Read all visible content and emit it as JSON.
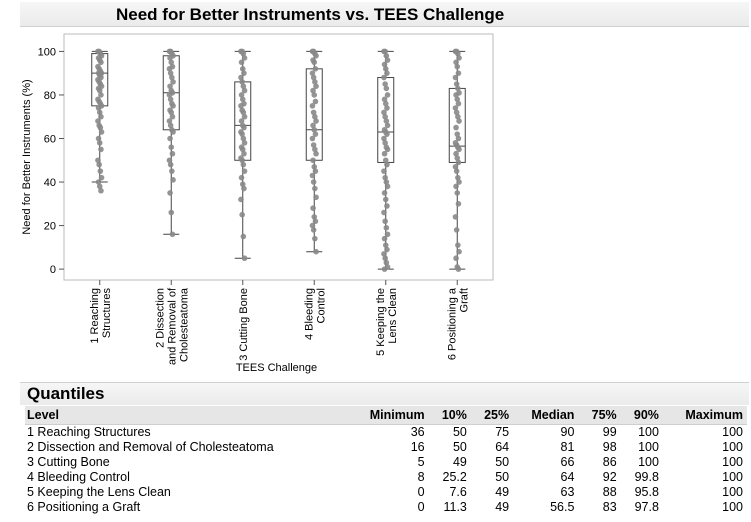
{
  "chart_data": {
    "type": "box",
    "title": "Need for Better Instruments vs. TEES Challenge",
    "xlabel": "TEES Challenge",
    "ylabel": "Need for Better Instruments (%)",
    "ylim": [
      -5,
      108
    ],
    "yticks": [
      0,
      20,
      40,
      60,
      80,
      100
    ],
    "categories": [
      [
        "1 Reaching",
        "Structures"
      ],
      [
        "2 Dissection",
        "and Removal of",
        "Cholesteatoma"
      ],
      [
        "3 Cutting Bone"
      ],
      [
        "4 Bleeding",
        "Control"
      ],
      [
        "5 Keeping the",
        "Lens Clean"
      ],
      [
        "6 Positioning a",
        "Graft"
      ]
    ],
    "boxes": [
      {
        "min": 36,
        "q1": 75,
        "median": 90,
        "q3": 99,
        "max": 100,
        "whisker_low": 40
      },
      {
        "min": 16,
        "q1": 64,
        "median": 81,
        "q3": 98,
        "max": 100,
        "whisker_low": 16
      },
      {
        "min": 5,
        "q1": 50,
        "median": 66,
        "q3": 86,
        "max": 100,
        "whisker_low": 5
      },
      {
        "min": 8,
        "q1": 50,
        "median": 64,
        "q3": 92,
        "max": 100,
        "whisker_low": 8
      },
      {
        "min": 0,
        "q1": 49,
        "median": 63,
        "q3": 88,
        "max": 100,
        "whisker_low": 0
      },
      {
        "min": 0,
        "q1": 49,
        "median": 56.5,
        "q3": 83,
        "max": 100,
        "whisker_low": 0
      }
    ],
    "points": [
      [
        100,
        100,
        99,
        98,
        97,
        96,
        95,
        93,
        92,
        91,
        90,
        90,
        89,
        88,
        87,
        86,
        85,
        84,
        83,
        82,
        80,
        78,
        77,
        76,
        75,
        74,
        72,
        70,
        68,
        66,
        65,
        63,
        60,
        58,
        55,
        50,
        48,
        45,
        42,
        40,
        38,
        36
      ],
      [
        100,
        100,
        99,
        98,
        97,
        95,
        93,
        92,
        90,
        88,
        86,
        84,
        82,
        81,
        80,
        78,
        76,
        75,
        73,
        72,
        70,
        68,
        66,
        64,
        63,
        60,
        56,
        53,
        50,
        48,
        45,
        41,
        35,
        26,
        16
      ],
      [
        100,
        100,
        99,
        97,
        95,
        92,
        90,
        88,
        86,
        84,
        82,
        80,
        78,
        76,
        75,
        73,
        72,
        70,
        68,
        66,
        65,
        63,
        62,
        60,
        58,
        56,
        55,
        53,
        51,
        50,
        48,
        45,
        42,
        39,
        37,
        32,
        25,
        15,
        5
      ],
      [
        100,
        100,
        99,
        98,
        96,
        95,
        92,
        90,
        88,
        86,
        84,
        82,
        80,
        77,
        75,
        72,
        70,
        68,
        66,
        64,
        62,
        60,
        57,
        55,
        53,
        50,
        47,
        45,
        43,
        40,
        37,
        33,
        28,
        24,
        22,
        20,
        18,
        14,
        8
      ],
      [
        100,
        100,
        98,
        96,
        94,
        92,
        90,
        88,
        85,
        83,
        80,
        78,
        76,
        74,
        72,
        70,
        68,
        66,
        64,
        63,
        62,
        60,
        58,
        56,
        55,
        53,
        50,
        48,
        45,
        42,
        40,
        38,
        35,
        32,
        29,
        26,
        22,
        19,
        16,
        14,
        11,
        9,
        7,
        5,
        3,
        1,
        0
      ],
      [
        100,
        100,
        99,
        97,
        95,
        93,
        90,
        88,
        85,
        83,
        81,
        80,
        78,
        76,
        74,
        72,
        70,
        68,
        65,
        62,
        60,
        58,
        57,
        56,
        55,
        53,
        51,
        49,
        47,
        45,
        42,
        40,
        38,
        35,
        30,
        24,
        18,
        11,
        8,
        5,
        1,
        0
      ]
    ],
    "grid": false,
    "colors": {
      "points": "#888888",
      "box": "#444444",
      "frame": "#bbbbbb"
    }
  },
  "quantiles": {
    "title": "Quantiles",
    "columns": [
      "Level",
      "Minimum",
      "10%",
      "25%",
      "Median",
      "75%",
      "90%",
      "Maximum"
    ],
    "rows": [
      [
        "1 Reaching Structures",
        "36",
        "50",
        "75",
        "90",
        "99",
        "100",
        "100"
      ],
      [
        "2 Dissection and Removal of Cholesteatoma",
        "16",
        "50",
        "64",
        "81",
        "98",
        "100",
        "100"
      ],
      [
        "3 Cutting Bone",
        "5",
        "49",
        "50",
        "66",
        "86",
        "100",
        "100"
      ],
      [
        "4 Bleeding Control",
        "8",
        "25.2",
        "50",
        "64",
        "92",
        "99.8",
        "100"
      ],
      [
        "5 Keeping the Lens Clean",
        "0",
        "7.6",
        "49",
        "63",
        "88",
        "95.8",
        "100"
      ],
      [
        "6 Positioning a Graft",
        "0",
        "11.3",
        "49",
        "56.5",
        "83",
        "97.8",
        "100"
      ]
    ]
  }
}
